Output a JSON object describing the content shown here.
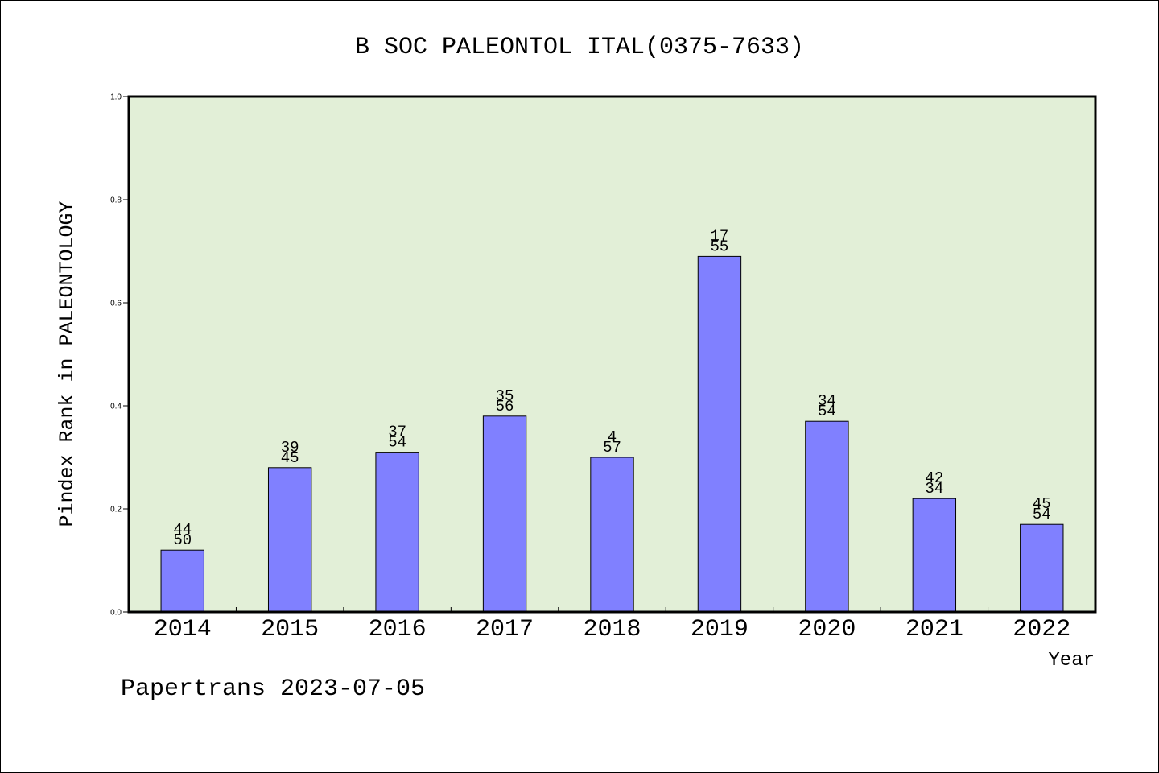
{
  "colors": {
    "plot_background": "#e2efd7",
    "bar_fill": "#8080ff",
    "bar_stroke": "#000000"
  },
  "footer": {
    "text": "Papertrans 2023-07-05"
  },
  "chart_data": {
    "type": "bar",
    "title": "B SOC PALEONTOL ITAL(0375-7633)",
    "xlabel": "Year",
    "ylabel": "Pindex Rank in PALEONTOLOGY",
    "categories": [
      "2014",
      "2015",
      "2016",
      "2017",
      "2018",
      "2019",
      "2020",
      "2021",
      "2022"
    ],
    "values": [
      0.12,
      0.28,
      0.31,
      0.38,
      0.3,
      0.69,
      0.37,
      0.22,
      0.17
    ],
    "bar_labels": [
      [
        "44",
        "50"
      ],
      [
        "39",
        "45"
      ],
      [
        "37",
        "54"
      ],
      [
        "35",
        "56"
      ],
      [
        "4",
        "57"
      ],
      [
        "17",
        "55"
      ],
      [
        "34",
        "54"
      ],
      [
        "42",
        "34"
      ],
      [
        "45",
        "54"
      ]
    ],
    "ylim": [
      0.0,
      1.0
    ],
    "yticks": [
      "0.0",
      "0.2",
      "0.4",
      "0.6",
      "0.8",
      "1.0"
    ],
    "grid": false,
    "legend": "none"
  }
}
